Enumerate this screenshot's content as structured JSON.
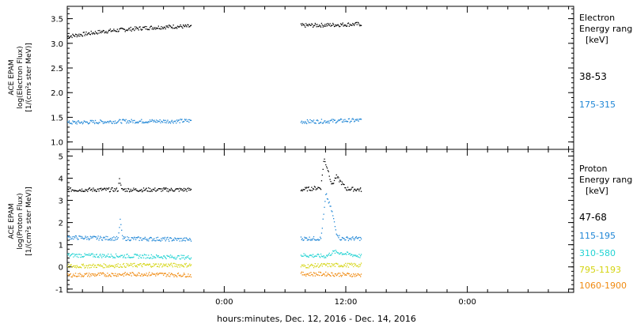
{
  "xaxis": {
    "label": "hours:minutes, Dec. 12, 2016 - Dec. 14, 2016",
    "range_hours": [
      -15.5,
      34.5
    ],
    "ticks": [
      {
        "hour": 0,
        "label": "0:00"
      },
      {
        "hour": 12,
        "label": "12:00"
      },
      {
        "hour": 24,
        "label": "0:00"
      }
    ],
    "minor_step_hours": 2
  },
  "chart_data": [
    {
      "type": "scatter",
      "ylabel_lines": [
        "ACE EPAM",
        "log(Electron Flux)",
        "[1/(cm²s ster MeV)]"
      ],
      "ylim": [
        0.85,
        3.75
      ],
      "yticks": [
        1.0,
        1.5,
        2.0,
        2.5,
        3.0,
        3.5
      ],
      "ytick_labels": [
        "1.0",
        "1.5",
        "2.0",
        "2.5",
        "3.0",
        "3.5"
      ],
      "legend_title": [
        "Electron",
        "Energy range",
        "[keV]"
      ],
      "data_gap_hours": [
        -3.3,
        7.5
      ],
      "series": [
        {
          "name": "38-53",
          "color": "#000000",
          "x": [
            -15.5,
            -12,
            -8,
            -5,
            -3.3,
            7.5,
            10,
            13.5
          ],
          "y": [
            3.15,
            3.25,
            3.32,
            3.35,
            3.35,
            3.37,
            3.38,
            3.4
          ]
        },
        {
          "name": "175-315",
          "color": "#1f86d6",
          "x": [
            -15.5,
            -10,
            -5,
            -3.3,
            7.5,
            10,
            13.5
          ],
          "y": [
            1.4,
            1.43,
            1.43,
            1.44,
            1.42,
            1.43,
            1.45
          ]
        }
      ]
    },
    {
      "type": "scatter",
      "ylabel_lines": [
        "ACE EPAM",
        "log(Proton Flux)",
        "[1/(cm²s ster MeV)]"
      ],
      "ylim": [
        -1.15,
        5.3
      ],
      "yticks": [
        -1,
        0,
        1,
        2,
        3,
        4,
        5
      ],
      "ytick_labels": [
        "-1",
        "0",
        "1",
        "2",
        "3",
        "4",
        "5"
      ],
      "legend_title": [
        "Proton",
        "Energy range",
        "[keV]"
      ],
      "data_gap_hours": [
        -3.3,
        7.5
      ],
      "series": [
        {
          "name": "47-68",
          "color": "#000000",
          "x": [
            -15.5,
            -10.5,
            -10.4,
            -10.2,
            -3.3,
            7.5,
            9.5,
            9.8,
            10.2,
            10.6,
            11,
            12,
            13.5
          ],
          "y": [
            3.5,
            3.5,
            4.1,
            3.5,
            3.5,
            3.5,
            3.6,
            4.9,
            4.4,
            3.7,
            4.1,
            3.55,
            3.5
          ]
        },
        {
          "name": "115-195",
          "color": "#1f86d6",
          "x": [
            -15.5,
            -10.5,
            -10.3,
            -10.1,
            -3.3,
            7.5,
            9.5,
            10,
            10.6,
            11,
            11.4,
            13.5
          ],
          "y": [
            1.35,
            1.3,
            2.2,
            1.3,
            1.25,
            1.3,
            1.3,
            3.3,
            2.5,
            1.6,
            1.3,
            1.3
          ]
        },
        {
          "name": "310-580",
          "color": "#22d3d3",
          "x": [
            -15.5,
            -8,
            -3.3,
            7.5,
            10,
            10.8,
            13.5
          ],
          "y": [
            0.55,
            0.5,
            0.45,
            0.55,
            0.5,
            0.7,
            0.5
          ]
        },
        {
          "name": "795-1193",
          "color": "#d4d410",
          "x": [
            -15.5,
            -8,
            -3.3,
            7.5,
            10,
            13.5
          ],
          "y": [
            0.05,
            0.1,
            0.1,
            0.05,
            0.1,
            0.1
          ]
        },
        {
          "name": "1060-1900",
          "color": "#f08a10",
          "x": [
            -15.5,
            -8,
            -3.3,
            7.5,
            10,
            13.5
          ],
          "y": [
            -0.35,
            -0.3,
            -0.35,
            -0.3,
            -0.3,
            -0.35
          ]
        }
      ]
    }
  ]
}
